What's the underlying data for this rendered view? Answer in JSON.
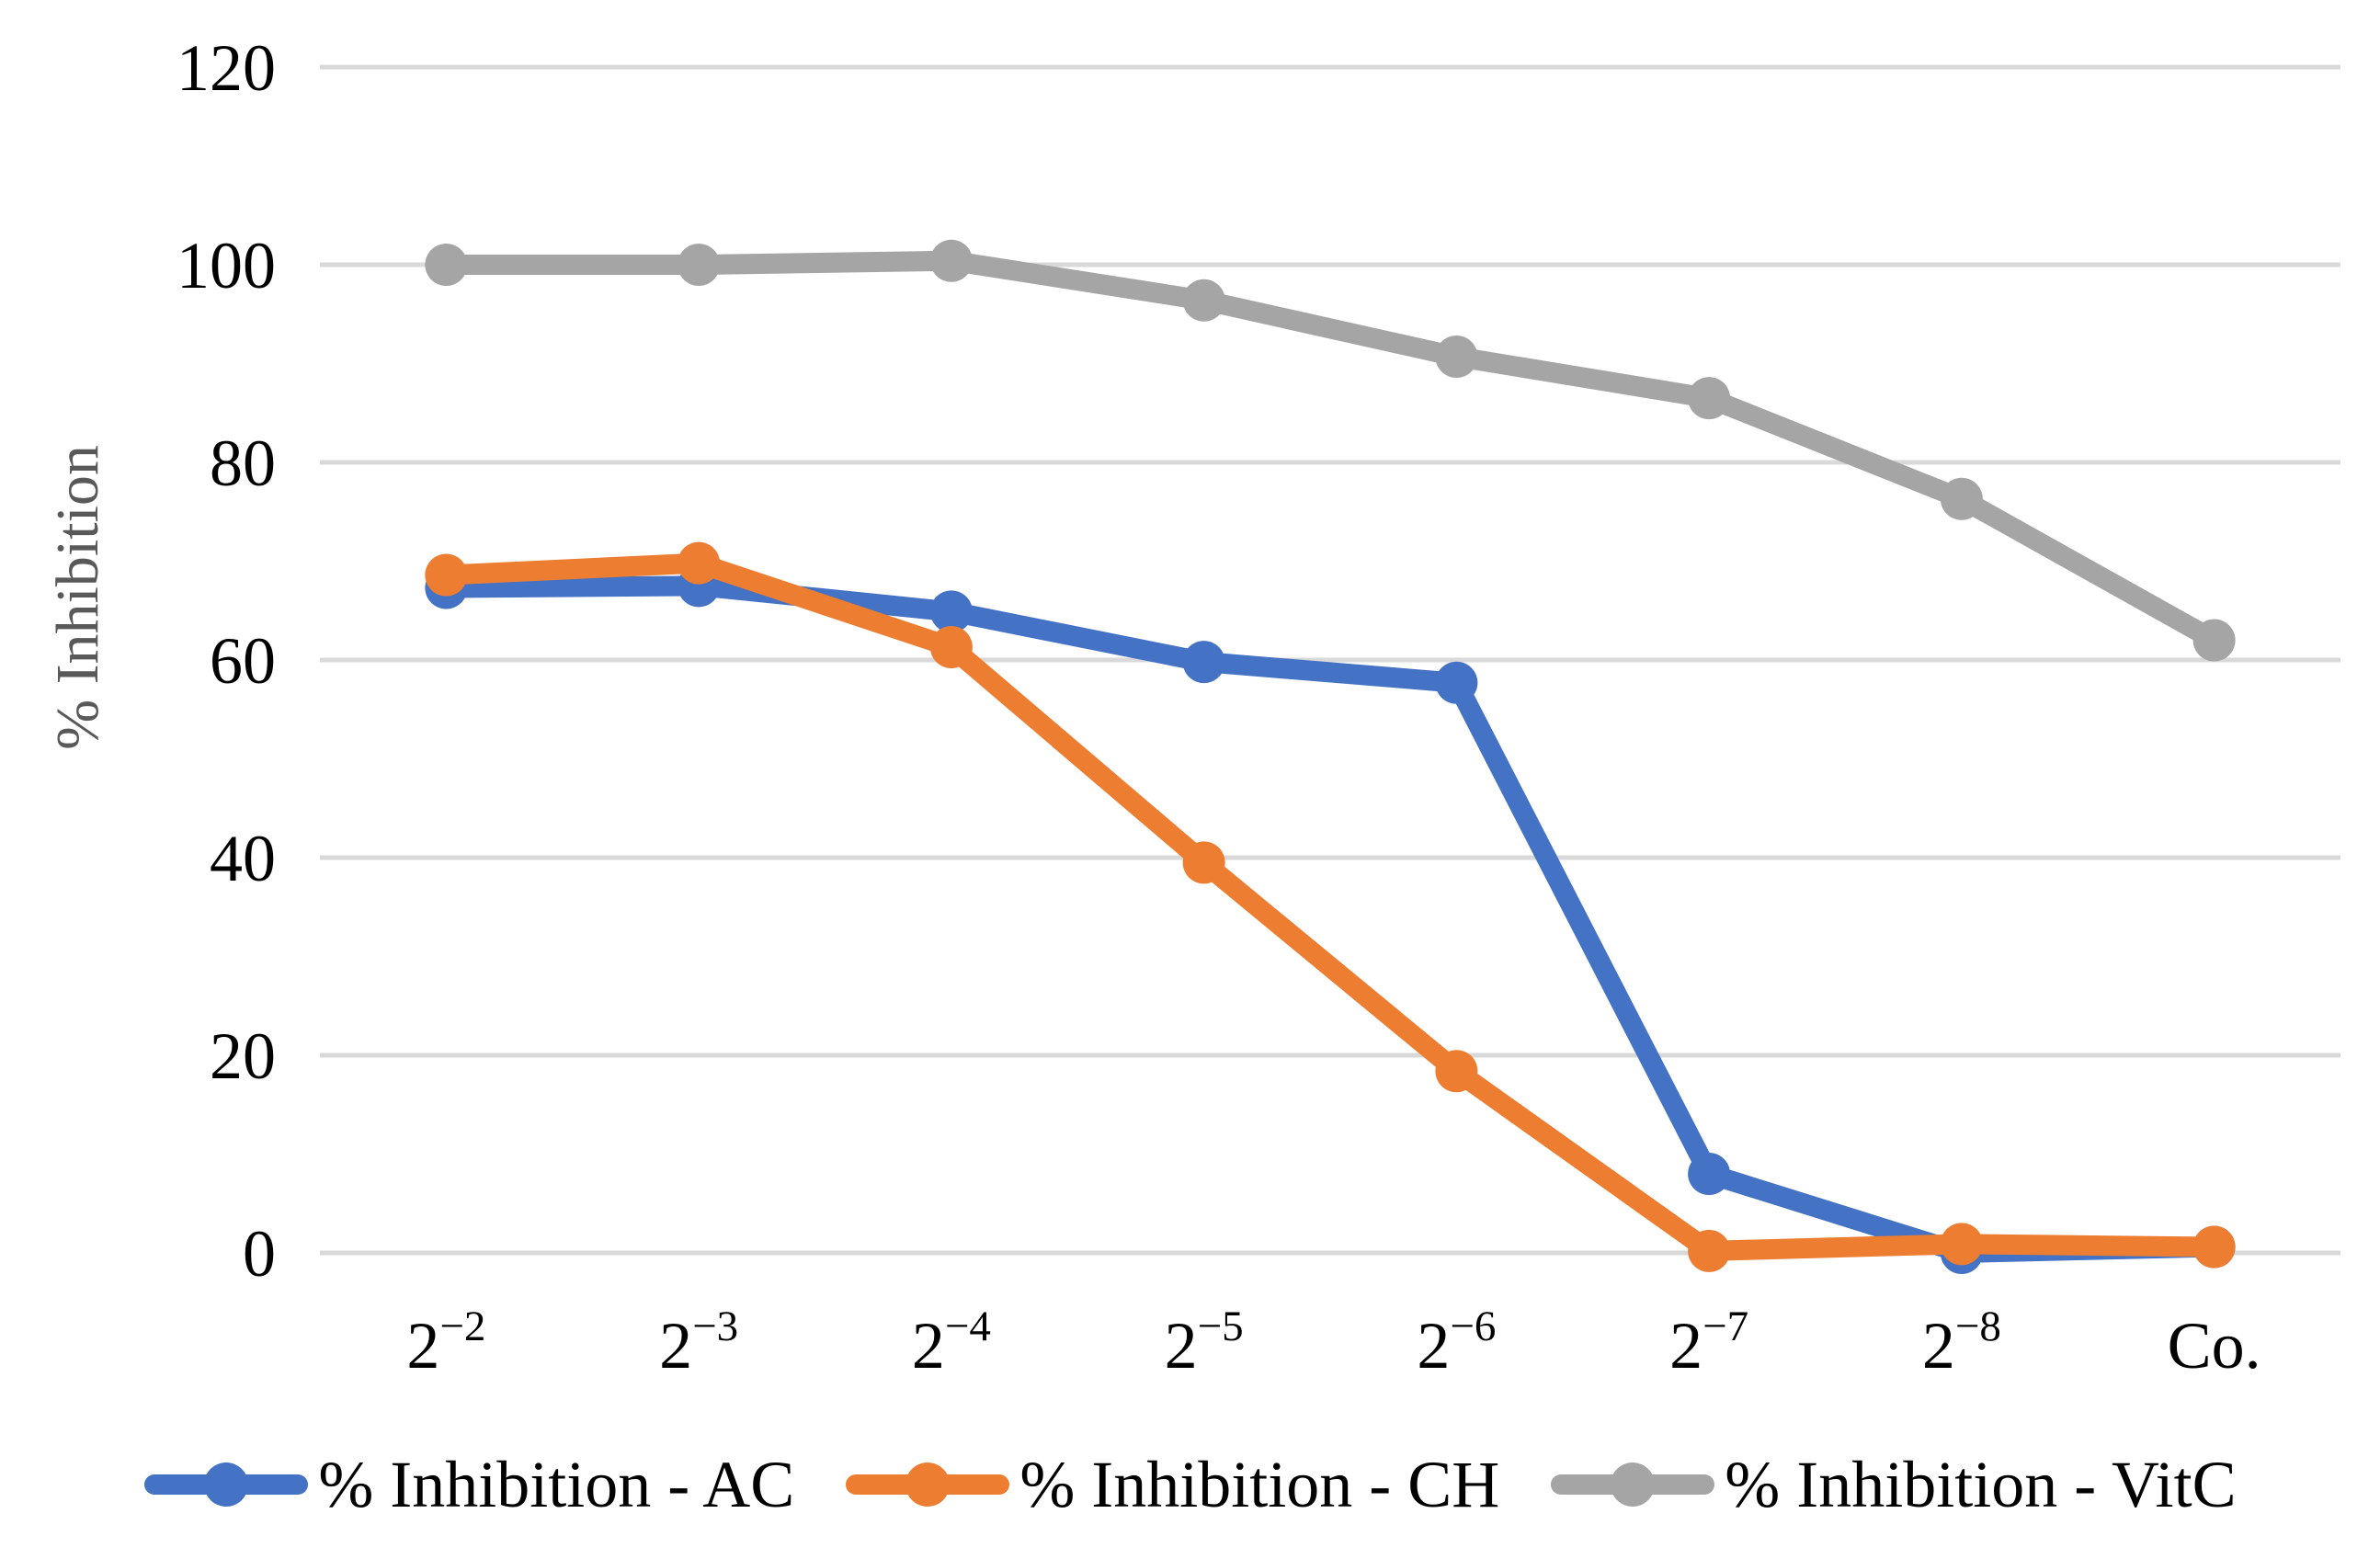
{
  "chart_data": {
    "type": "line",
    "title": "",
    "xlabel": "",
    "ylabel": "% Inhibition",
    "ylim": [
      0,
      120
    ],
    "yticks": [
      0,
      20,
      40,
      60,
      80,
      100,
      120
    ],
    "grid": "horizontal",
    "legend_position": "bottom",
    "categories": [
      "2^−2",
      "2^−3",
      "2^−4",
      "2^−5",
      "2^−6",
      "2^−7",
      "2^−8",
      "Co."
    ],
    "series": [
      {
        "name": "% Inhibition - AC",
        "color": "#4472C4",
        "values": [
          67.3,
          67.5,
          64.9,
          59.8,
          57.7,
          8.0,
          0.0,
          0.6
        ]
      },
      {
        "name": "% Inhibition - CH",
        "color": "#ED7D31",
        "values": [
          68.6,
          69.8,
          61.3,
          39.5,
          18.4,
          0.2,
          0.9,
          0.6
        ]
      },
      {
        "name": "% Inhibition - VitC",
        "color": "#A5A5A5",
        "values": [
          100.0,
          100.0,
          100.4,
          96.4,
          90.7,
          86.5,
          76.3,
          62.0
        ]
      }
    ]
  },
  "colors": {
    "background": "#FFFFFF",
    "gridline": "#D9D9D9",
    "axis_text": "#000000",
    "y_axis_title_text": "#595959"
  }
}
